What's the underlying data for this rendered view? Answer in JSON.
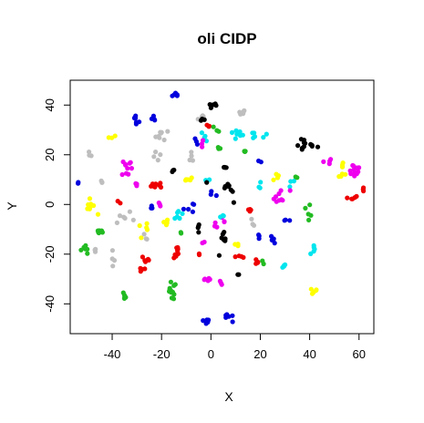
{
  "chart_data": {
    "type": "scatter",
    "title": "oli CIDP",
    "xlabel": "X",
    "ylabel": "Y",
    "xlim": [
      -57,
      66
    ],
    "ylim": [
      -52,
      50
    ],
    "xticks": [
      -40,
      -20,
      0,
      20,
      40,
      60
    ],
    "yticks": [
      -40,
      -20,
      0,
      20,
      40
    ],
    "grid": false,
    "legend": "none",
    "colors": {
      "black": "#000000",
      "red": "#ee0000",
      "green": "#22bb22",
      "blue": "#0000dd",
      "cyan": "#00e5ee",
      "magenta": "#ee00ee",
      "yellow": "#ffff00",
      "gray": "#bebebe"
    },
    "clusters": [
      {
        "color": "blue",
        "cx": -14,
        "cy": 44,
        "n": 7,
        "sx": 0.8,
        "sy": 0.6
      },
      {
        "color": "black",
        "cx": 1,
        "cy": 40,
        "n": 5,
        "sx": 1.2,
        "sy": 0.8
      },
      {
        "color": "gray",
        "cx": 12,
        "cy": 37,
        "n": 5,
        "sx": 1.2,
        "sy": 0.6
      },
      {
        "color": "blue",
        "cx": -30,
        "cy": 35,
        "n": 6,
        "sx": 0.8,
        "sy": 1.0
      },
      {
        "color": "blue",
        "cx": -23,
        "cy": 34,
        "n": 4,
        "sx": 0.6,
        "sy": 0.8
      },
      {
        "color": "gray",
        "cx": -4,
        "cy": 35,
        "n": 4,
        "sx": 1.0,
        "sy": 0.5
      },
      {
        "color": "black",
        "cx": -3,
        "cy": 34,
        "n": 3,
        "sx": 0.6,
        "sy": 0.5
      },
      {
        "color": "red",
        "cx": 0,
        "cy": 32,
        "n": 3,
        "sx": 0.8,
        "sy": 0.8
      },
      {
        "color": "green",
        "cx": 2,
        "cy": 30,
        "n": 3,
        "sx": 0.8,
        "sy": 0.8
      },
      {
        "color": "yellow",
        "cx": -40,
        "cy": 27,
        "n": 3,
        "sx": 0.8,
        "sy": 0.4
      },
      {
        "color": "gray",
        "cx": -20,
        "cy": 28,
        "n": 8,
        "sx": 1.5,
        "sy": 1.0
      },
      {
        "color": "cyan",
        "cx": -2,
        "cy": 27,
        "n": 4,
        "sx": 0.8,
        "sy": 1.5
      },
      {
        "color": "magenta",
        "cx": -4,
        "cy": 24,
        "n": 3,
        "sx": 0.5,
        "sy": 1.2
      },
      {
        "color": "cyan",
        "cx": 10,
        "cy": 28,
        "n": 8,
        "sx": 2.0,
        "sy": 1.0
      },
      {
        "color": "cyan",
        "cx": 19,
        "cy": 28,
        "n": 6,
        "sx": 2.0,
        "sy": 1.0
      },
      {
        "color": "blue",
        "cx": -6,
        "cy": 25,
        "n": 3,
        "sx": 0.6,
        "sy": 0.6
      },
      {
        "color": "black",
        "cx": 38,
        "cy": 24,
        "n": 12,
        "sx": 2.5,
        "sy": 1.5
      },
      {
        "color": "green",
        "cx": 3,
        "cy": 22,
        "n": 3,
        "sx": 0.5,
        "sy": 0.6
      },
      {
        "color": "green",
        "cx": 14,
        "cy": 21,
        "n": 3,
        "sx": 0.5,
        "sy": 0.5
      },
      {
        "color": "gray",
        "cx": -49,
        "cy": 20,
        "n": 3,
        "sx": 0.5,
        "sy": 0.6
      },
      {
        "color": "gray",
        "cx": -21,
        "cy": 19,
        "n": 4,
        "sx": 1.2,
        "sy": 1.0
      },
      {
        "color": "gray",
        "cx": -8,
        "cy": 19,
        "n": 4,
        "sx": 0.5,
        "sy": 1.5
      },
      {
        "color": "magenta",
        "cx": -34,
        "cy": 15,
        "n": 10,
        "sx": 1.0,
        "sy": 2.0
      },
      {
        "color": "black",
        "cx": -15,
        "cy": 14,
        "n": 3,
        "sx": 0.4,
        "sy": 0.6
      },
      {
        "color": "black",
        "cx": 5,
        "cy": 15,
        "n": 4,
        "sx": 1.0,
        "sy": 0.5
      },
      {
        "color": "blue",
        "cx": 20,
        "cy": 17,
        "n": 2,
        "sx": 0.3,
        "sy": 0.5
      },
      {
        "color": "magenta",
        "cx": 47,
        "cy": 17,
        "n": 4,
        "sx": 1.0,
        "sy": 0.8
      },
      {
        "color": "yellow",
        "cx": 53,
        "cy": 16,
        "n": 4,
        "sx": 0.6,
        "sy": 0.8
      },
      {
        "color": "magenta",
        "cx": 58,
        "cy": 14,
        "n": 14,
        "sx": 1.5,
        "sy": 1.5
      },
      {
        "color": "yellow",
        "cx": 53,
        "cy": 12,
        "n": 5,
        "sx": 1.2,
        "sy": 0.6
      },
      {
        "color": "gray",
        "cx": -44,
        "cy": 9,
        "n": 3,
        "sx": 0.4,
        "sy": 0.6
      },
      {
        "color": "magenta",
        "cx": -30,
        "cy": 8,
        "n": 3,
        "sx": 0.6,
        "sy": 0.4
      },
      {
        "color": "red",
        "cx": -21,
        "cy": 8,
        "n": 8,
        "sx": 1.5,
        "sy": 0.8
      },
      {
        "color": "yellow",
        "cx": -10,
        "cy": 10,
        "n": 5,
        "sx": 1.5,
        "sy": 0.5
      },
      {
        "color": "cyan",
        "cx": -2,
        "cy": 10,
        "n": 3,
        "sx": 0.8,
        "sy": 0.4
      },
      {
        "color": "black",
        "cx": 7,
        "cy": 6,
        "n": 9,
        "sx": 2.5,
        "sy": 2.5
      },
      {
        "color": "cyan",
        "cx": 20,
        "cy": 8,
        "n": 3,
        "sx": 0.4,
        "sy": 1.0
      },
      {
        "color": "yellow",
        "cx": 26,
        "cy": 12,
        "n": 4,
        "sx": 0.6,
        "sy": 1.0
      },
      {
        "color": "cyan",
        "cx": 33,
        "cy": 9,
        "n": 3,
        "sx": 1.0,
        "sy": 0.8
      },
      {
        "color": "green",
        "cx": 35,
        "cy": 11,
        "n": 2,
        "sx": 0.5,
        "sy": 0.4
      },
      {
        "color": "blue",
        "cx": -54,
        "cy": 8,
        "n": 2,
        "sx": 0.3,
        "sy": 0.4
      },
      {
        "color": "yellow",
        "cx": -49,
        "cy": -1,
        "n": 9,
        "sx": 1.2,
        "sy": 1.5
      },
      {
        "color": "red",
        "cx": -37,
        "cy": 1,
        "n": 2,
        "sx": 0.4,
        "sy": 0.3
      },
      {
        "color": "gray",
        "cx": -35,
        "cy": -5,
        "n": 6,
        "sx": 2.0,
        "sy": 3.0
      },
      {
        "color": "blue",
        "cx": -24,
        "cy": -1,
        "n": 3,
        "sx": 0.6,
        "sy": 0.5
      },
      {
        "color": "magenta",
        "cx": -21,
        "cy": 0,
        "n": 3,
        "sx": 0.6,
        "sy": 0.8
      },
      {
        "color": "blue",
        "cx": -9,
        "cy": -1,
        "n": 5,
        "sx": 1.0,
        "sy": 1.2
      },
      {
        "color": "blue",
        "cx": 0,
        "cy": 4,
        "n": 3,
        "sx": 0.8,
        "sy": 1.5
      },
      {
        "color": "red",
        "cx": 16,
        "cy": -3,
        "n": 4,
        "sx": 1.0,
        "sy": 1.2
      },
      {
        "color": "magenta",
        "cx": 28,
        "cy": 3,
        "n": 9,
        "sx": 2.0,
        "sy": 1.5
      },
      {
        "color": "blue",
        "cx": 31,
        "cy": -6,
        "n": 3,
        "sx": 0.8,
        "sy": 0.5
      },
      {
        "color": "green",
        "cx": 40,
        "cy": -2,
        "n": 5,
        "sx": 0.6,
        "sy": 2.0
      },
      {
        "color": "red",
        "cx": 57,
        "cy": 3,
        "n": 5,
        "sx": 1.2,
        "sy": 0.8
      },
      {
        "color": "red",
        "cx": 62,
        "cy": 6,
        "n": 3,
        "sx": 0.5,
        "sy": 0.4
      },
      {
        "color": "cyan",
        "cx": -13,
        "cy": -5,
        "n": 6,
        "sx": 0.8,
        "sy": 1.5
      },
      {
        "color": "yellow",
        "cx": -27,
        "cy": -10,
        "n": 5,
        "sx": 1.2,
        "sy": 1.0
      },
      {
        "color": "yellow",
        "cx": -18,
        "cy": -7,
        "n": 5,
        "sx": 1.0,
        "sy": 1.0
      },
      {
        "color": "green",
        "cx": -45,
        "cy": -11,
        "n": 6,
        "sx": 0.8,
        "sy": 1.0
      },
      {
        "color": "gray",
        "cx": -26,
        "cy": -13,
        "n": 3,
        "sx": 0.6,
        "sy": 0.8
      },
      {
        "color": "black",
        "cx": -5,
        "cy": -9,
        "n": 4,
        "sx": 0.5,
        "sy": 1.0
      },
      {
        "color": "magenta",
        "cx": 3,
        "cy": -7,
        "n": 6,
        "sx": 1.5,
        "sy": 0.8
      },
      {
        "color": "cyan",
        "cx": 5,
        "cy": -5,
        "n": 3,
        "sx": 0.8,
        "sy": 0.4
      },
      {
        "color": "gray",
        "cx": 17,
        "cy": -7,
        "n": 3,
        "sx": 0.6,
        "sy": 0.8
      },
      {
        "color": "green",
        "cx": -12,
        "cy": -12,
        "n": 2,
        "sx": 0.3,
        "sy": 0.4
      },
      {
        "color": "green",
        "cx": -51,
        "cy": -18,
        "n": 7,
        "sx": 1.0,
        "sy": 1.2
      },
      {
        "color": "gray",
        "cx": -47,
        "cy": -18,
        "n": 3,
        "sx": 0.5,
        "sy": 0.6
      },
      {
        "color": "gray",
        "cx": -40,
        "cy": -22,
        "n": 4,
        "sx": 0.5,
        "sy": 1.5
      },
      {
        "color": "blue",
        "cx": 24,
        "cy": -14,
        "n": 4,
        "sx": 0.8,
        "sy": 0.6
      },
      {
        "color": "blue",
        "cx": 20,
        "cy": -13,
        "n": 3,
        "sx": 0.6,
        "sy": 0.6
      },
      {
        "color": "black",
        "cx": 5,
        "cy": -16,
        "n": 8,
        "sx": 1.2,
        "sy": 2.5
      },
      {
        "color": "cyan",
        "cx": 42,
        "cy": -18,
        "n": 5,
        "sx": 0.8,
        "sy": 1.0
      },
      {
        "color": "magenta",
        "cx": -3,
        "cy": -15,
        "n": 2,
        "sx": 0.3,
        "sy": 0.4
      },
      {
        "color": "red",
        "cx": -14,
        "cy": -20,
        "n": 9,
        "sx": 0.6,
        "sy": 2.5
      },
      {
        "color": "red",
        "cx": -26,
        "cy": -22,
        "n": 5,
        "sx": 1.2,
        "sy": 1.0
      },
      {
        "color": "red",
        "cx": -28,
        "cy": -26,
        "n": 5,
        "sx": 1.0,
        "sy": 0.8
      },
      {
        "color": "red",
        "cx": -5,
        "cy": -20,
        "n": 2,
        "sx": 0.3,
        "sy": 0.4
      },
      {
        "color": "yellow",
        "cx": 11,
        "cy": -16,
        "n": 3,
        "sx": 0.6,
        "sy": 0.6
      },
      {
        "color": "red",
        "cx": 12,
        "cy": -21,
        "n": 4,
        "sx": 1.0,
        "sy": 0.6
      },
      {
        "color": "red",
        "cx": 19,
        "cy": -23,
        "n": 4,
        "sx": 0.8,
        "sy": 0.8
      },
      {
        "color": "green",
        "cx": 21,
        "cy": -24,
        "n": 2,
        "sx": 0.3,
        "sy": 0.4
      },
      {
        "color": "black",
        "cx": 11,
        "cy": -28,
        "n": 2,
        "sx": 0.3,
        "sy": 0.4
      },
      {
        "color": "cyan",
        "cx": 30,
        "cy": -25,
        "n": 4,
        "sx": 0.8,
        "sy": 0.6
      },
      {
        "color": "green",
        "cx": -16,
        "cy": -35,
        "n": 12,
        "sx": 1.0,
        "sy": 1.8
      },
      {
        "color": "green",
        "cx": -35,
        "cy": -37,
        "n": 5,
        "sx": 0.5,
        "sy": 1.0
      },
      {
        "color": "magenta",
        "cx": -2,
        "cy": -31,
        "n": 6,
        "sx": 1.0,
        "sy": 1.0
      },
      {
        "color": "magenta",
        "cx": 4,
        "cy": -32,
        "n": 3,
        "sx": 0.6,
        "sy": 0.6
      },
      {
        "color": "yellow",
        "cx": 42,
        "cy": -35,
        "n": 5,
        "sx": 1.0,
        "sy": 0.6
      },
      {
        "color": "blue",
        "cx": -2,
        "cy": -47,
        "n": 7,
        "sx": 0.8,
        "sy": 1.2
      },
      {
        "color": "blue",
        "cx": 7,
        "cy": -46,
        "n": 6,
        "sx": 1.2,
        "sy": 0.8
      }
    ]
  }
}
